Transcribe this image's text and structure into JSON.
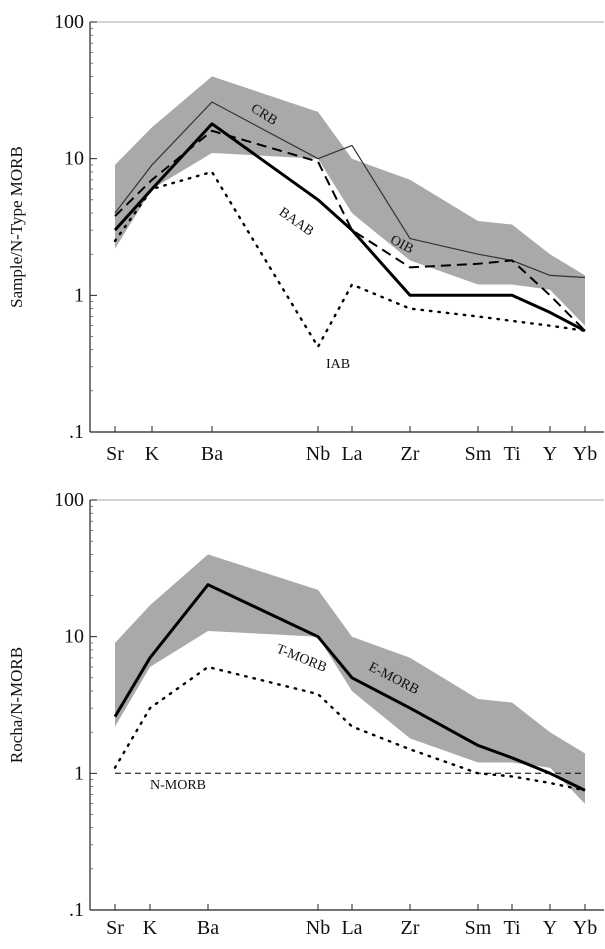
{
  "chart_data": [
    {
      "type": "line",
      "title": "",
      "ylabel": "Sample/N-Type MORB",
      "xlabel": "",
      "yscale": "log",
      "ylim": [
        0.1,
        100
      ],
      "ytick_labels": [
        "100",
        "10",
        "1",
        ".1"
      ],
      "categories": [
        "Sr",
        "K",
        "Ba",
        "Nb",
        "La",
        "Zr",
        "Sm",
        "Ti",
        "Y",
        "Yb"
      ],
      "grid": false,
      "shaded_band": {
        "upper": [
          9,
          17,
          40,
          22,
          10,
          7,
          3.5,
          3.3,
          2,
          1.4
        ],
        "lower": [
          2.2,
          6,
          11,
          10,
          4,
          1.8,
          1.2,
          1.2,
          1.1,
          0.6
        ],
        "color": "#9a9a9a"
      },
      "series": [
        {
          "name": "CRB",
          "style": "thin",
          "values": [
            4,
            9,
            26,
            10,
            12.5,
            2.6,
            2,
            1.8,
            1.4,
            1.35
          ]
        },
        {
          "name": "BAAB",
          "style": "thick",
          "values": [
            3,
            6,
            18,
            5,
            3,
            1,
            1,
            1,
            0.75,
            0.55
          ]
        },
        {
          "name": "OIB",
          "style": "dashed",
          "values": [
            3.8,
            7,
            16,
            9.5,
            3,
            1.6,
            1.7,
            1.8,
            1,
            0.55
          ]
        },
        {
          "name": "IAB",
          "style": "dotted",
          "values": [
            2.5,
            6,
            8,
            0.42,
            1.2,
            0.8,
            0.7,
            0.65,
            0.6,
            0.55
          ]
        }
      ]
    },
    {
      "type": "line",
      "title": "",
      "ylabel": "Rocha/N-MORB",
      "xlabel": "",
      "yscale": "log",
      "ylim": [
        0.1,
        100
      ],
      "ytick_labels": [
        "100",
        "10",
        "1",
        ".1"
      ],
      "categories": [
        "Sr",
        "K",
        "Ba",
        "Nb",
        "La",
        "Zr",
        "Sm",
        "Ti",
        "Y",
        "Yb"
      ],
      "grid": false,
      "shaded_band": {
        "upper": [
          9,
          17,
          40,
          22,
          10,
          7,
          3.5,
          3.3,
          2,
          1.4
        ],
        "lower": [
          2.2,
          6,
          11,
          10,
          4,
          1.8,
          1.2,
          1.2,
          1.1,
          0.6
        ],
        "color": "#9a9a9a"
      },
      "series": [
        {
          "name": "E-MORB",
          "style": "thick",
          "values": [
            2.6,
            7,
            24,
            10,
            5,
            3,
            1.6,
            1.3,
            1,
            0.75
          ]
        },
        {
          "name": "T-MORB",
          "style": "dotted",
          "values": [
            1.1,
            3,
            6,
            3.8,
            2.2,
            1.5,
            1,
            0.95,
            0.85,
            0.75
          ]
        },
        {
          "name": "N-MORB",
          "style": "dashed",
          "values": [
            1,
            1,
            1,
            1,
            1,
            1,
            1,
            1,
            1,
            1
          ]
        }
      ]
    }
  ]
}
